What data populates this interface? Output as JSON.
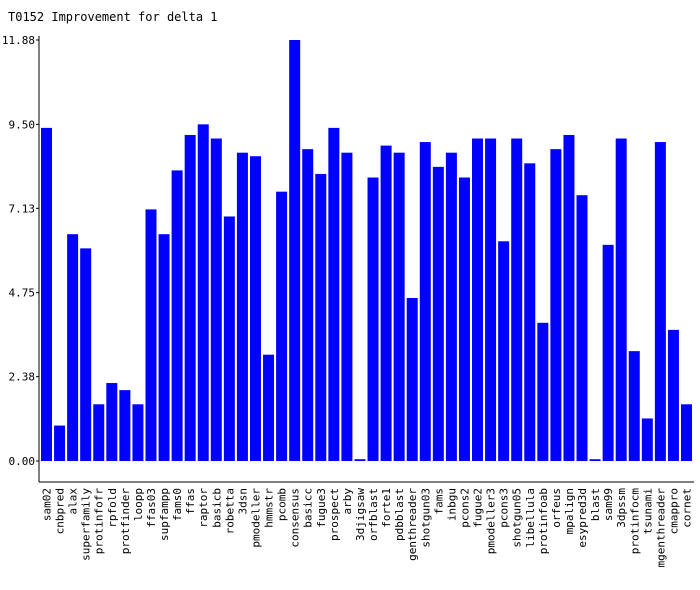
{
  "chart_data": {
    "type": "bar",
    "title": "T0152 Improvement for delta 1",
    "xlabel": "",
    "ylabel": "",
    "ylim": [
      0,
      11.88
    ],
    "yticks": [
      "0.00",
      "2.38",
      "4.75",
      "7.13",
      "9.50",
      "11.88"
    ],
    "bar_color": "#0000ff",
    "categories": [
      "sam02",
      "cnbpred",
      "alax",
      "superfamily",
      "protinfofr",
      "rpfold",
      "protfinder",
      "loopp",
      "ffas03",
      "supfampp",
      "fams0",
      "ffas",
      "raptor",
      "basicb",
      "robetta",
      "3dsn",
      "pmodeller",
      "hmmstr",
      "pcomb",
      "consensus",
      "basicc",
      "fugue3",
      "prospect",
      "arby",
      "3djigsaw",
      "orfblast",
      "forte1",
      "pdbblast",
      "genthreader",
      "shotgun03",
      "fams",
      "inbgu",
      "pcons2",
      "fugue2",
      "pmodeller3",
      "pcons3",
      "shotgun05",
      "libellula",
      "protinfoab",
      "orfeus",
      "mpalign",
      "esypred3d",
      "blast",
      "sam99",
      "3dpssm",
      "protinfocm",
      "tsunami",
      "mgenthreader",
      "cmappro",
      "cornet"
    ],
    "values": [
      9.4,
      1.0,
      6.4,
      6.0,
      1.6,
      2.2,
      2.0,
      1.6,
      7.1,
      6.4,
      8.2,
      9.2,
      9.5,
      9.1,
      6.9,
      8.7,
      8.6,
      3.0,
      7.6,
      11.88,
      8.8,
      8.1,
      9.4,
      8.7,
      0.05,
      8.0,
      8.9,
      8.7,
      4.6,
      9.0,
      8.3,
      8.7,
      8.0,
      9.1,
      9.1,
      6.2,
      9.1,
      8.4,
      3.9,
      8.8,
      9.2,
      7.5,
      0.05,
      6.1,
      9.1,
      3.1,
      1.2,
      9.0,
      3.7,
      1.6
    ]
  }
}
